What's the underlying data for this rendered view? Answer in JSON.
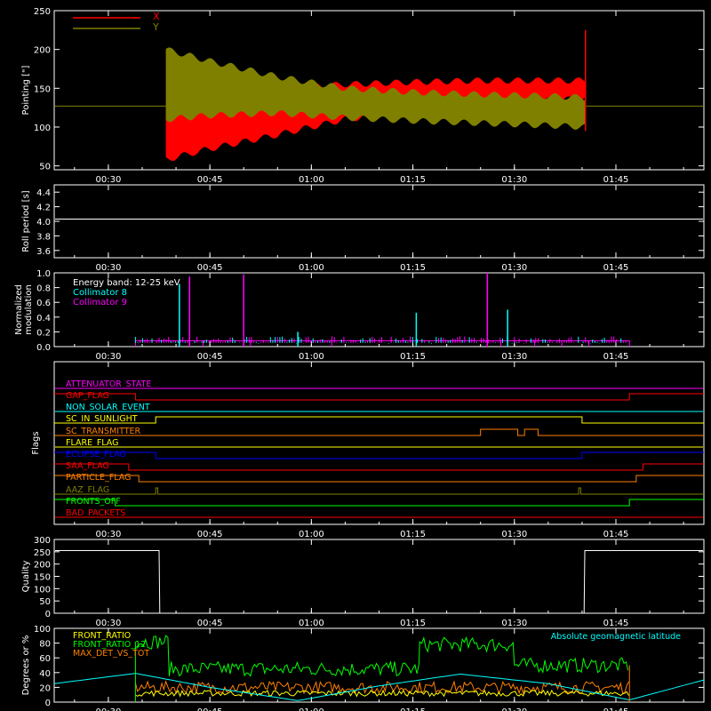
{
  "time_axis": {
    "range": [
      22,
      118
    ],
    "ticks": [
      30,
      45,
      60,
      75,
      90,
      105
    ],
    "tick_labels": [
      "00:30",
      "00:45",
      "01:00",
      "01:15",
      "01:30",
      "01:45"
    ]
  },
  "colors": {
    "background": "#000000",
    "axes": "#ffffff",
    "red": "#ff0000",
    "olive": "#808000",
    "cyan": "#00ffff",
    "magenta": "#ff00ff",
    "white": "#ffffff",
    "green": "#00ff00",
    "orange": "#ff8000",
    "yellow": "#ffff00",
    "blue": "#0000ff"
  },
  "chart_data": [
    {
      "id": "pointing",
      "type": "area",
      "ylabel": "Pointing [\"]",
      "ylim": [
        45,
        250
      ],
      "yticks": [
        50,
        100,
        150,
        200,
        250
      ],
      "series": [
        {
          "name": "X",
          "color": "#ff0000",
          "envelope": {
            "t": [
              38.5,
              45,
              55,
              65,
              75,
              85,
              95,
              100.5
            ],
            "low": [
              58,
              72,
              90,
              110,
              120,
              128,
              134,
              137
            ],
            "high": [
              130,
              140,
              150,
              155,
              158,
              160,
              160,
              160
            ]
          },
          "baseline": 127
        },
        {
          "name": "Y",
          "color": "#808000",
          "envelope": {
            "t": [
              38.5,
              45,
              55,
              65,
              75,
              85,
              95,
              100.5
            ],
            "low": [
              110,
              115,
              118,
              112,
              108,
              105,
              102,
              100
            ],
            "high": [
              200,
              185,
              165,
              150,
              145,
              142,
              140,
              138
            ]
          },
          "baseline": 127
        }
      ]
    },
    {
      "id": "roll-period",
      "type": "line",
      "ylabel": "Roll period [s]",
      "ylim": [
        3.5,
        4.5
      ],
      "yticks": [
        3.6,
        3.8,
        4.0,
        4.2,
        4.4
      ],
      "series": [
        {
          "name": "",
          "color": "#ffffff",
          "t": [
            22,
            118
          ],
          "values": [
            4.03,
            4.03
          ]
        }
      ]
    },
    {
      "id": "modulation",
      "type": "line",
      "ylabel": "Normalized modulation",
      "ylim": [
        0,
        1.0
      ],
      "yticks": [
        0.0,
        0.2,
        0.4,
        0.6,
        0.8,
        1.0
      ],
      "legend": [
        {
          "label": "Energy band: 12-25 keV",
          "color": "#ffffff"
        },
        {
          "label": "Collimator 8",
          "color": "#00ffff"
        },
        {
          "label": "Collimator 9",
          "color": "#ff00ff"
        }
      ],
      "range_t": [
        34,
        107
      ],
      "spikes": [
        {
          "series": "Collimator 8",
          "t": [
            40.5,
            75.5,
            89,
            58
          ],
          "values": [
            0.85,
            0.46,
            0.5,
            0.2
          ]
        },
        {
          "series": "Collimator 9",
          "t": [
            42,
            50,
            86
          ],
          "values": [
            0.95,
            0.98,
            1.0
          ]
        }
      ]
    },
    {
      "id": "flags",
      "type": "step",
      "ylabel": "Flags",
      "flags": [
        {
          "label": "ATTENUATOR_STATE",
          "color": "#ff00ff",
          "base_px": 437,
          "steps": []
        },
        {
          "label": "GAP_FLAG",
          "color": "#ff0000",
          "base_px": 450,
          "steps": [
            [
              22,
              1
            ],
            [
              34,
              0
            ],
            [
              107,
              1
            ],
            [
              118,
              1
            ]
          ]
        },
        {
          "label": "NON_SOLAR_EVENT",
          "color": "#00ffff",
          "base_px": 463,
          "steps": []
        },
        {
          "label": "SC_IN_SUNLIGHT",
          "color": "#ffff00",
          "base_px": 476,
          "steps": [
            [
              22,
              0
            ],
            [
              37,
              1
            ],
            [
              100,
              0
            ],
            [
              118,
              0
            ]
          ]
        },
        {
          "label": "SC_TRANSMITTER",
          "color": "#ff8000",
          "base_px": 490,
          "steps": [
            [
              22,
              0
            ],
            [
              85,
              1
            ],
            [
              90.5,
              0
            ],
            [
              91.5,
              1
            ],
            [
              93.5,
              0
            ],
            [
              118,
              0
            ]
          ]
        },
        {
          "label": "FLARE_FLAG",
          "color": "#ffff00",
          "base_px": 503,
          "steps": []
        },
        {
          "label": "ECLIPSE_FLAG",
          "color": "#0000ff",
          "base_px": 516,
          "steps": [
            [
              22,
              1
            ],
            [
              37,
              0
            ],
            [
              100,
              1
            ],
            [
              118,
              1
            ]
          ]
        },
        {
          "label": "SAA_FLAG",
          "color": "#ff0000",
          "base_px": 529,
          "steps": [
            [
              22,
              1
            ],
            [
              33,
              0
            ],
            [
              109,
              1
            ],
            [
              118,
              1
            ]
          ]
        },
        {
          "label": "PARTICLE_FLAG",
          "color": "#ff8000",
          "base_px": 542,
          "steps": [
            [
              22,
              1
            ],
            [
              34.5,
              0
            ],
            [
              108,
              1
            ],
            [
              118,
              1
            ]
          ]
        },
        {
          "label": "AAZ_FLAG",
          "color": "#808000",
          "base_px": 556,
          "steps": [
            [
              22,
              0
            ],
            [
              37,
              1
            ],
            [
              37.3,
              0
            ],
            [
              99.5,
              1
            ],
            [
              99.8,
              0
            ],
            [
              118,
              0
            ]
          ]
        },
        {
          "label": "FRONTS_OFF",
          "color": "#00ff00",
          "base_px": 569,
          "steps": [
            [
              22,
              1
            ],
            [
              31,
              0
            ],
            [
              107,
              1
            ],
            [
              118,
              1
            ]
          ]
        },
        {
          "label": "BAD_PACKETS",
          "color": "#ff0000",
          "base_px": 582,
          "steps": []
        }
      ]
    },
    {
      "id": "quality",
      "type": "line",
      "ylabel": "Quality",
      "ylim": [
        0,
        300
      ],
      "yticks": [
        0,
        50,
        100,
        150,
        200,
        250,
        300
      ],
      "series": [
        {
          "name": "",
          "color": "#ffffff",
          "t": [
            22,
            37.5,
            37.6,
            100.3,
            100.4,
            118
          ],
          "values": [
            255,
            255,
            0,
            0,
            255,
            255
          ]
        }
      ]
    },
    {
      "id": "ratios",
      "type": "line",
      "ylabel": "Degrees or %",
      "ylim": [
        0,
        100
      ],
      "yticks": [
        0,
        20,
        40,
        60,
        80,
        100
      ],
      "legend": [
        {
          "label": "FRONT_RATIO",
          "color": "#ffff00"
        },
        {
          "label": "FRONT_RATIO_12",
          "color": "#00ff00"
        },
        {
          "label": "MAX_DET_VS_TOT",
          "color": "#ff8000"
        }
      ],
      "annotation": {
        "label": "Absolute geomagnetic latitude",
        "color": "#00ffff"
      },
      "series": [
        {
          "name": "FRONT_RATIO_12",
          "color": "#00ff00",
          "segments": [
            [
              34,
              39,
              82
            ],
            [
              39,
              76,
              45
            ],
            [
              76,
              90,
              78
            ],
            [
              90,
              107,
              50
            ]
          ]
        },
        {
          "name": "MAX_DET_VS_TOT",
          "color": "#ff8000",
          "segments": [
            [
              34,
              107,
              20
            ]
          ]
        },
        {
          "name": "FRONT_RATIO",
          "color": "#ffff00",
          "segments": [
            [
              34,
              107,
              12
            ]
          ]
        },
        {
          "name": "Absolute geomagnetic latitude",
          "color": "#00ffff",
          "t": [
            22,
            34,
            45,
            58,
            70,
            82,
            95,
            107,
            118
          ],
          "values": [
            25,
            39,
            20,
            2,
            22,
            38,
            25,
            3,
            30
          ]
        }
      ]
    }
  ]
}
